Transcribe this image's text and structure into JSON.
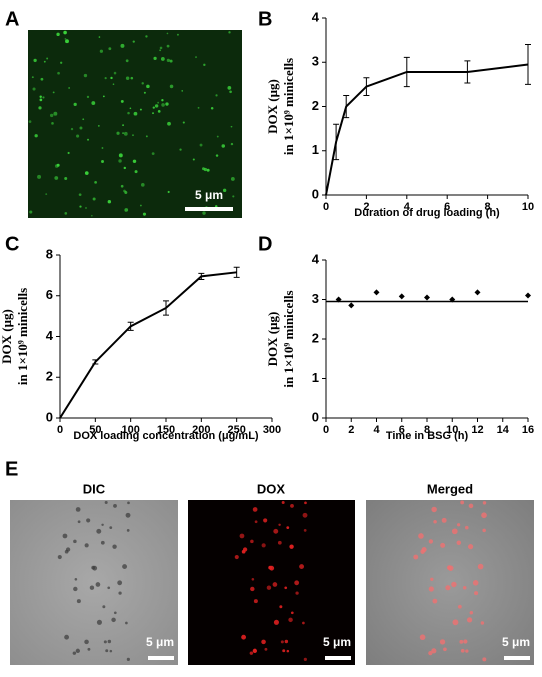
{
  "image_panels": [
    {
      "label": "A",
      "scale_bar": "5 μm"
    },
    {
      "label": "E",
      "images": [
        {
          "title": "DIC",
          "scale_bar": "5 μm"
        },
        {
          "title": "DOX",
          "scale_bar": "5 μm"
        },
        {
          "title": "Merged",
          "scale_bar": "5 μm"
        }
      ]
    }
  ],
  "chart_data": [
    {
      "type": "line",
      "panel_label": "B",
      "x_label": "Duration of drug loading (h)",
      "y_label": [
        "DOX  (μg)",
        "in 1×10⁹ minicells"
      ],
      "x": [
        0,
        0.5,
        1,
        2,
        4,
        7,
        10
      ],
      "values": [
        0,
        1.2,
        2.0,
        2.45,
        2.78,
        2.78,
        2.95
      ],
      "errors": [
        0,
        0.4,
        0.25,
        0.2,
        0.33,
        0.25,
        0.45
      ],
      "color": "#000000",
      "xlim": [
        0,
        10
      ],
      "ylim": [
        0,
        4
      ],
      "xticks": [
        0,
        2,
        4,
        6,
        8,
        10
      ],
      "yticks": [
        0,
        1,
        2,
        3,
        4
      ]
    },
    {
      "type": "line",
      "panel_label": "C",
      "x_label": "DOX loading concentration (μg/mL)",
      "y_label": [
        "DOX  (μg)",
        "in 1×10⁹ minicells"
      ],
      "x": [
        0,
        50,
        100,
        150,
        200,
        250
      ],
      "values": [
        0,
        2.75,
        4.5,
        5.4,
        6.95,
        7.15
      ],
      "errors": [
        0,
        0.1,
        0.2,
        0.35,
        0.15,
        0.25
      ],
      "color": "#000000",
      "xlim": [
        0,
        300
      ],
      "ylim": [
        0,
        8
      ],
      "xticks": [
        0,
        50,
        100,
        150,
        200,
        250,
        300
      ],
      "yticks": [
        0,
        2,
        4,
        6,
        8
      ]
    },
    {
      "type": "scatter",
      "panel_label": "D",
      "x_label": "Time in BSG (h)",
      "y_label": [
        "DOX  (μg)",
        "in 1×10⁹ minicells"
      ],
      "x": [
        1,
        2,
        4,
        6,
        8,
        10,
        12,
        16
      ],
      "values": [
        3.0,
        2.85,
        3.18,
        3.08,
        3.05,
        3.0,
        3.18,
        3.1
      ],
      "reference_line": 2.95,
      "color": "#000000",
      "xlim": [
        0,
        16
      ],
      "ylim": [
        0,
        4
      ],
      "xticks": [
        0,
        2,
        4,
        6,
        8,
        10,
        12,
        14,
        16
      ],
      "yticks": [
        0,
        1,
        2,
        3,
        4
      ]
    }
  ]
}
